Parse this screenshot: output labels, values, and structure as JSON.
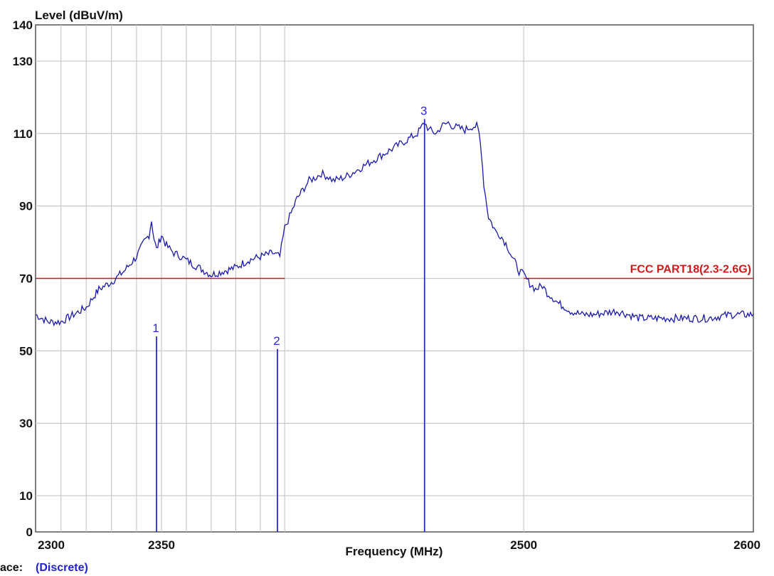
{
  "chart_data": {
    "type": "line",
    "ylabel": "Level (dBuV/m)",
    "xlabel": "Frequency (MHz)",
    "xlim": [
      2300,
      2600
    ],
    "ylim": [
      0,
      140
    ],
    "x_scale": "log",
    "x_tick_labels": [
      2300,
      2350,
      2500,
      2600
    ],
    "y_tick_labels": [
      0,
      10,
      30,
      50,
      70,
      90,
      110,
      130,
      140
    ],
    "x_gridlines": [
      2300,
      2310,
      2320,
      2330,
      2340,
      2350,
      2360,
      2370,
      2380,
      2390,
      2400,
      2500,
      2600
    ],
    "y_gridlines": [
      10,
      30,
      50,
      70,
      90,
      110,
      130
    ],
    "grid": true,
    "limit_line": {
      "name": "FCC PART18(2.3-2.6G)",
      "color": "#cc1a1a",
      "segments": [
        {
          "x": [
            2300,
            2400
          ],
          "y": 70
        },
        {
          "x": [
            2500,
            2600
          ],
          "y": 70
        }
      ]
    },
    "markers": [
      {
        "label": "1",
        "x": 2348,
        "y": 54
      },
      {
        "label": "2",
        "x": 2397,
        "y": 50.5
      },
      {
        "label": "3",
        "x": 2458,
        "y": 114
      }
    ],
    "series": [
      {
        "color": "#1a1aaa",
        "x": [
          2300,
          2305,
          2310,
          2315,
          2320,
          2323,
          2325,
          2330,
          2335,
          2340,
          2343,
          2345,
          2346,
          2347,
          2348,
          2349,
          2350,
          2352,
          2355,
          2358,
          2360,
          2365,
          2370,
          2375,
          2380,
          2385,
          2390,
          2395,
          2398,
          2400,
          2402,
          2405,
          2408,
          2410,
          2413,
          2415,
          2418,
          2420,
          2425,
          2430,
          2435,
          2440,
          2445,
          2450,
          2455,
          2458,
          2460,
          2463,
          2465,
          2468,
          2470,
          2475,
          2478,
          2480,
          2481,
          2482,
          2483,
          2485,
          2488,
          2490,
          2493,
          2495,
          2498,
          2500,
          2502,
          2505,
          2508,
          2510,
          2512,
          2515,
          2518,
          2520,
          2525,
          2530,
          2540,
          2550,
          2560,
          2570,
          2580,
          2590,
          2600
        ],
        "y": [
          60,
          58,
          58,
          60,
          62,
          65,
          67,
          69,
          72,
          76,
          80,
          82,
          86,
          81,
          78,
          80,
          82,
          79,
          77,
          76,
          75,
          73,
          71,
          72,
          73,
          75,
          76,
          77,
          76,
          84,
          87,
          92,
          95,
          97,
          98,
          99,
          98,
          97,
          98,
          100,
          102,
          104,
          106,
          108,
          110,
          113,
          111,
          110,
          112,
          113,
          112,
          111,
          112,
          112,
          110,
          105,
          96,
          87,
          83,
          82,
          79,
          76,
          72,
          71,
          69,
          67,
          68,
          66,
          65,
          63,
          62,
          61,
          60,
          60,
          61,
          59,
          59,
          59,
          59,
          60,
          60
        ]
      }
    ]
  },
  "trace": {
    "prefix": "ace:",
    "value": "(Discrete)"
  }
}
